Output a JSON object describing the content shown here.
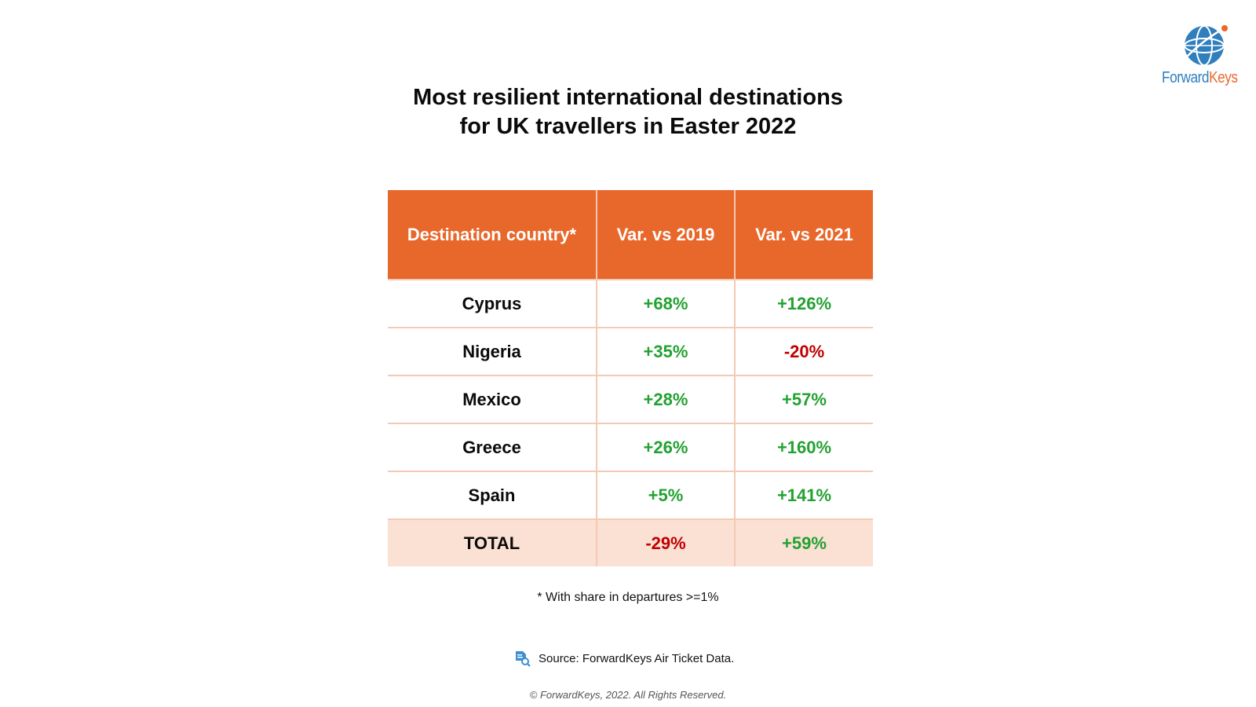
{
  "brand": {
    "logo_part1": "Forward",
    "logo_part2": "Keys",
    "icon": "globe-logo-icon",
    "colors": {
      "blue": "#2f7fbf",
      "orange": "#e8682c"
    }
  },
  "title_line1": "Most resilient international destinations",
  "title_line2": "for UK travellers in Easter 2022",
  "table": {
    "headers": [
      "Destination country*",
      "Var. vs 2019",
      "Var. vs 2021"
    ],
    "rows": [
      {
        "country": "Cyprus",
        "vs2019": "+68%",
        "vs2021": "+126%"
      },
      {
        "country": "Nigeria",
        "vs2019": "+35%",
        "vs2021": "-20%"
      },
      {
        "country": "Mexico",
        "vs2019": "+28%",
        "vs2021": "+57%"
      },
      {
        "country": "Greece",
        "vs2019": "+26%",
        "vs2021": "+160%"
      },
      {
        "country": "Spain",
        "vs2019": "+5%",
        "vs2021": "+141%"
      }
    ],
    "total": {
      "label": "TOTAL",
      "vs2019": "-29%",
      "vs2021": "+59%"
    },
    "colors": {
      "header": "#e8682c",
      "positive": "#23a131",
      "negative": "#c00000",
      "total_row": "#fbe0d4"
    }
  },
  "footnote": "* With share in departures >=1%",
  "source": {
    "icon": "document-search-icon",
    "text": "Source: ForwardKeys Air Ticket Data."
  },
  "copyright": "© ForwardKeys, 2022. All Rights Reserved.",
  "chart_data": {
    "type": "table",
    "title": "Most resilient international destinations for UK travellers in Easter 2022",
    "columns": [
      "Destination country*",
      "Var. vs 2019",
      "Var. vs 2021"
    ],
    "categories": [
      "Cyprus",
      "Nigeria",
      "Mexico",
      "Greece",
      "Spain",
      "TOTAL"
    ],
    "series": [
      {
        "name": "Var. vs 2019",
        "values": [
          68,
          35,
          28,
          26,
          5,
          -29
        ]
      },
      {
        "name": "Var. vs 2021",
        "values": [
          126,
          -20,
          57,
          160,
          141,
          59
        ]
      }
    ]
  }
}
